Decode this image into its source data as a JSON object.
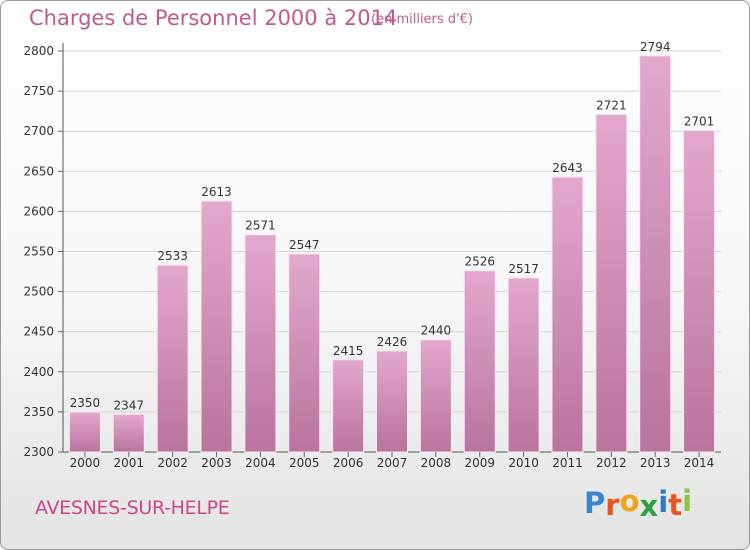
{
  "header": {
    "title": "Charges de Personnel 2000 à 2014",
    "subtitle": "(en milliers d'€)"
  },
  "footer": {
    "location": "AVESNES-SUR-HELPE",
    "logo_letters": [
      "P",
      "r",
      "o",
      "x",
      "i",
      "t",
      "i"
    ]
  },
  "colors": {
    "accent": "#c05a8e",
    "bar_top": "#e3a8cd",
    "bar_bottom": "#b8749c",
    "logo": [
      "#3a86c8",
      "#e8551d",
      "#f1a31b",
      "#2f9e45",
      "#2d7bc4",
      "#e8551d",
      "#8bc53f"
    ]
  },
  "chart_data": {
    "type": "bar",
    "title": "Charges de Personnel 2000 à 2014",
    "subtitle": "(en milliers d'€)",
    "categories": [
      "2000",
      "2001",
      "2002",
      "2003",
      "2004",
      "2005",
      "2006",
      "2007",
      "2008",
      "2009",
      "2010",
      "2011",
      "2012",
      "2013",
      "2014"
    ],
    "values": [
      2350,
      2347,
      2533,
      2613,
      2571,
      2547,
      2415,
      2426,
      2440,
      2526,
      2517,
      2643,
      2721,
      2794,
      2701
    ],
    "data_labels": [
      "2350",
      "2347",
      "2533",
      "2613",
      "2571",
      "2547",
      "2415",
      "2426",
      "2440",
      "2526",
      "2517",
      "2643",
      "2721",
      "2794",
      "2701"
    ],
    "xlabel": "",
    "ylabel": "",
    "ylim": [
      2300,
      2800
    ],
    "yticks": [
      2300,
      2350,
      2400,
      2450,
      2500,
      2550,
      2600,
      2650,
      2700,
      2750,
      2800
    ],
    "grid": true,
    "legend": "none"
  }
}
